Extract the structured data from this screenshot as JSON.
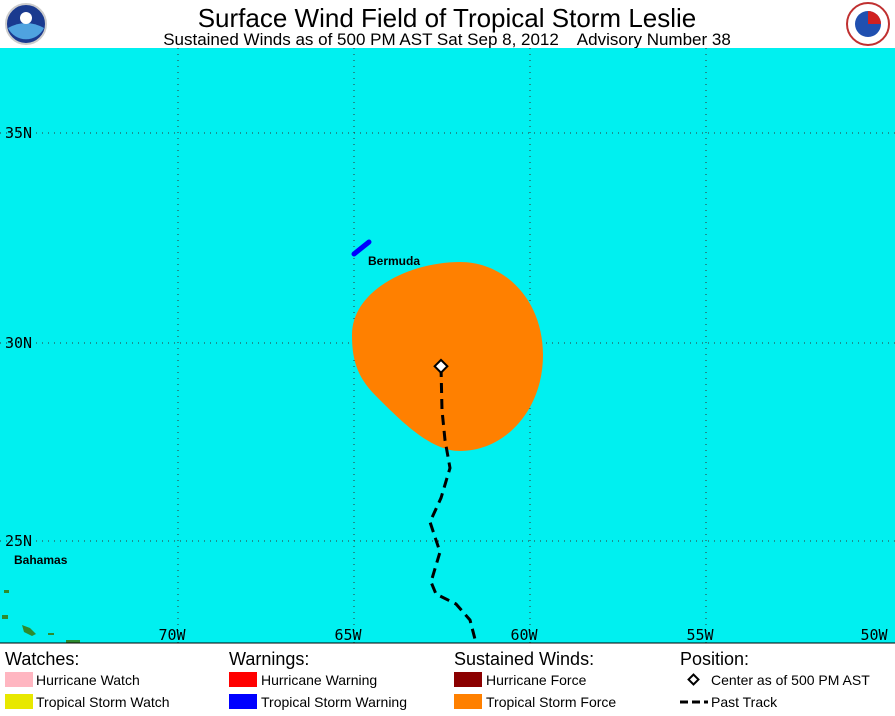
{
  "header": {
    "title": "Surface Wind Field of Tropical Storm Leslie",
    "subtitle": "Sustained Winds as of 500 PM AST Sat Sep 8, 2012    Advisory Number 38"
  },
  "map": {
    "latitude_labels": [
      "35N",
      "30N",
      "25N"
    ],
    "longitude_labels": [
      "70W",
      "65W",
      "60W",
      "55W",
      "50W"
    ],
    "places": [
      "Bermuda",
      "Bahamas"
    ]
  },
  "legend": {
    "watches": {
      "heading": "Watches:",
      "items": [
        "Hurricane Watch",
        "Tropical Storm Watch"
      ]
    },
    "warnings": {
      "heading": "Warnings:",
      "items": [
        "Hurricane Warning",
        "Tropical Storm Warning"
      ]
    },
    "winds": {
      "heading": "Sustained Winds:",
      "items": [
        "Hurricane Force",
        "Tropical Storm Force"
      ]
    },
    "position": {
      "heading": "Position:",
      "items": [
        "Center as of 500 PM AST",
        "Past Track"
      ]
    }
  }
}
